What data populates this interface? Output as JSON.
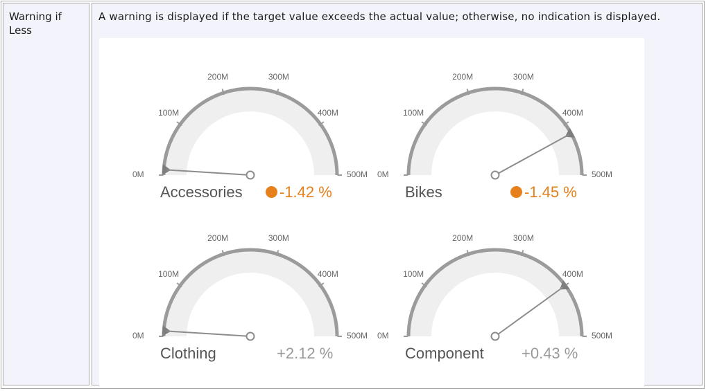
{
  "row": {
    "label": "Warning if Less",
    "description": "A warning is displayed if the target value exceeds the actual value; otherwise, no indication is displayed."
  },
  "colors": {
    "warning": "#e5801a",
    "neutral_text": "#9a9a9a",
    "gauge_arc": "#9b9b9b",
    "gauge_fill": "#efefef"
  },
  "scale": {
    "min": 0,
    "max": 500,
    "unit": "M",
    "tick_labels": [
      "0M",
      "100M",
      "200M",
      "300M",
      "400M",
      "500M"
    ]
  },
  "gauges": [
    {
      "name": "Accessories",
      "delta": "-1.42 %",
      "warning": true,
      "needle_value": 10,
      "target_value": 10
    },
    {
      "name": "Bikes",
      "delta": "-1.45 %",
      "warning": true,
      "needle_value": 420,
      "target_value": 420
    },
    {
      "name": "Clothing",
      "delta": "+2.12 %",
      "warning": false,
      "needle_value": 10,
      "target_value": 10
    },
    {
      "name": "Component",
      "delta": "+0.43 %",
      "warning": false,
      "needle_value": 400,
      "target_value": 400
    }
  ]
}
